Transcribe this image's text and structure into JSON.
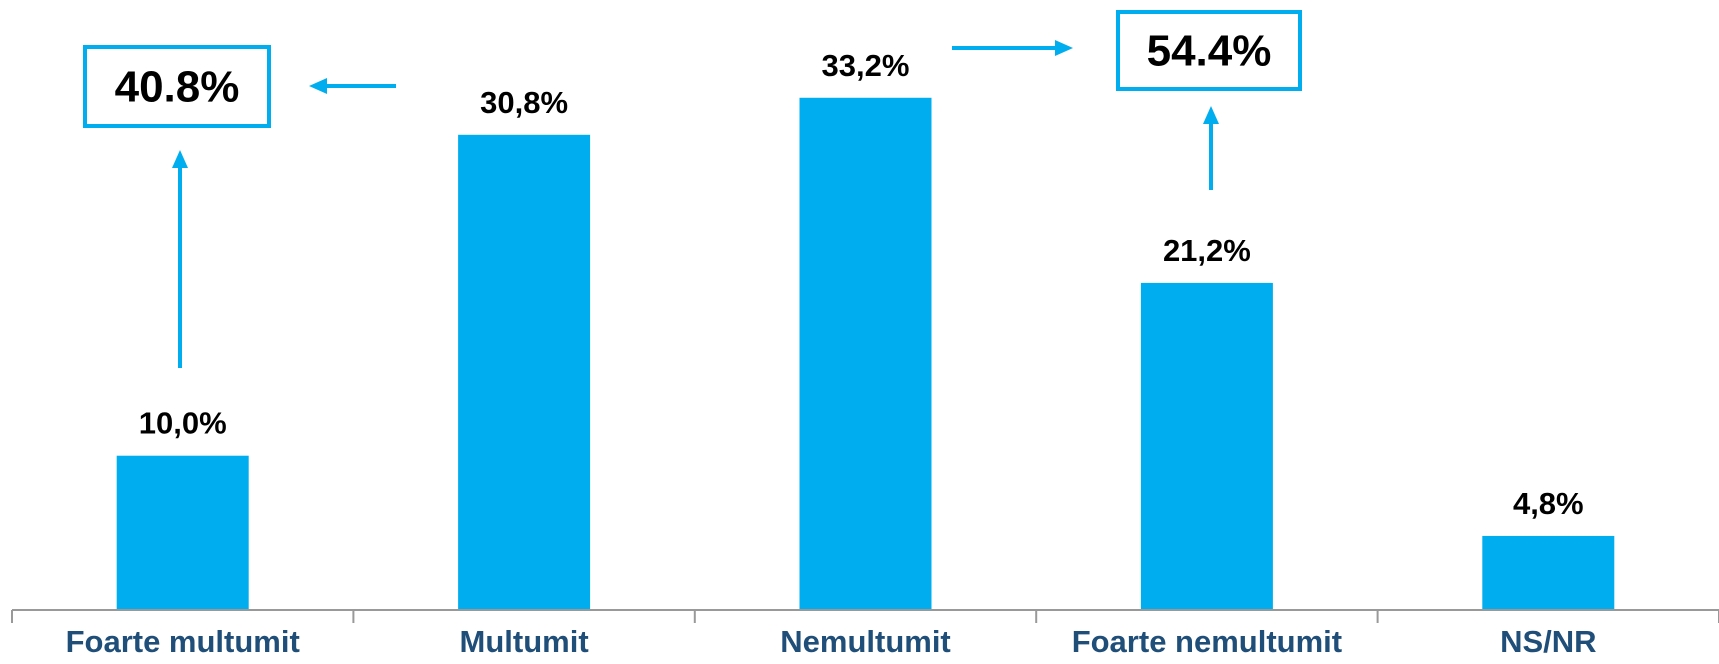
{
  "colors": {
    "bar": "#00aeef",
    "axis": "#999999",
    "tick_label": "#1f4e79",
    "data_label": "#000000",
    "callout": "#00aeef"
  },
  "chart_data": {
    "type": "bar",
    "categories": [
      "Foarte multumit",
      "Multumit",
      "Nemultumit",
      "Foarte nemultumit",
      "NS/NR"
    ],
    "values": [
      10.0,
      30.8,
      33.2,
      21.2,
      4.8
    ],
    "value_labels": [
      "10,0%",
      "30,8%",
      "33,2%",
      "21,2%",
      "4,8%"
    ],
    "ylim": [
      0,
      35
    ],
    "grid": false,
    "legend": "none",
    "annotations": [
      {
        "text": "40.8%",
        "sums": [
          "Foarte multumit",
          "Multumit"
        ]
      },
      {
        "text": "54.4%",
        "sums": [
          "Nemultumit",
          "Foarte nemultumit"
        ]
      }
    ]
  }
}
